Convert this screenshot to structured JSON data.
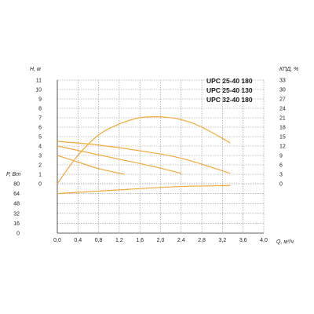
{
  "chart_data": {
    "type": "line",
    "x_axis": {
      "label": "Q, м³/ч",
      "ticks": [
        "0,0",
        "0,4",
        "0,8",
        "1,2",
        "1,6",
        "2,0",
        "2,4",
        "2,8",
        "3,2",
        "3,6",
        "4,0"
      ],
      "range": [
        0,
        4.0
      ]
    },
    "head_axis": {
      "label": "H, м",
      "ticks": [
        "0",
        "1",
        "2",
        "3",
        "4",
        "5",
        "6",
        "7",
        "8",
        "9",
        "10",
        "11"
      ],
      "range": [
        0,
        11
      ]
    },
    "efficiency_axis": {
      "label": "КПД, %",
      "ticks": [
        "0",
        "3",
        "6",
        "9",
        "12",
        "15",
        "18",
        "21",
        "24",
        "27",
        "30",
        "33"
      ],
      "range": [
        0,
        33
      ]
    },
    "power_axis": {
      "label": "P, Вт",
      "ticks": [
        "0",
        "16",
        "32",
        "48",
        "64",
        "80"
      ],
      "range": [
        0,
        80
      ]
    },
    "legend": [
      "UPC 25-40 180",
      "UPC 25-40 130",
      "UPC 32-40 180"
    ],
    "series": [
      {
        "name": "UPC 25-40 180",
        "axis": "head",
        "x": [
          0,
          0.8,
          1.6,
          2.4,
          3.35
        ],
        "y": [
          4.5,
          4.1,
          3.5,
          2.7,
          1.1
        ]
      },
      {
        "name": "UPC 25-40 130",
        "axis": "head",
        "x": [
          0,
          0.6,
          1.2,
          1.8,
          2.4
        ],
        "y": [
          4.0,
          3.3,
          2.6,
          1.9,
          1.1
        ]
      },
      {
        "name": "UPC 32-40 180",
        "axis": "head",
        "x": [
          0,
          0.4,
          0.8,
          1.3
        ],
        "y": [
          3.0,
          2.3,
          1.6,
          1.0
        ]
      },
      {
        "axis": "efficiency",
        "x": [
          0,
          0.4,
          0.8,
          1.2,
          1.6,
          2.0,
          2.4,
          2.8,
          3.35
        ],
        "y": [
          0,
          9,
          15.5,
          19,
          21,
          21.3,
          20.4,
          18,
          13
        ]
      },
      {
        "axis": "power",
        "x": [
          0,
          0.8,
          1.6,
          2.4,
          3.35
        ],
        "y": [
          64,
          68,
          72,
          75.5,
          77
        ]
      }
    ],
    "colors": {
      "curve": "#f2a93b",
      "grid": "#8a8a8a",
      "text": "#222222"
    }
  }
}
